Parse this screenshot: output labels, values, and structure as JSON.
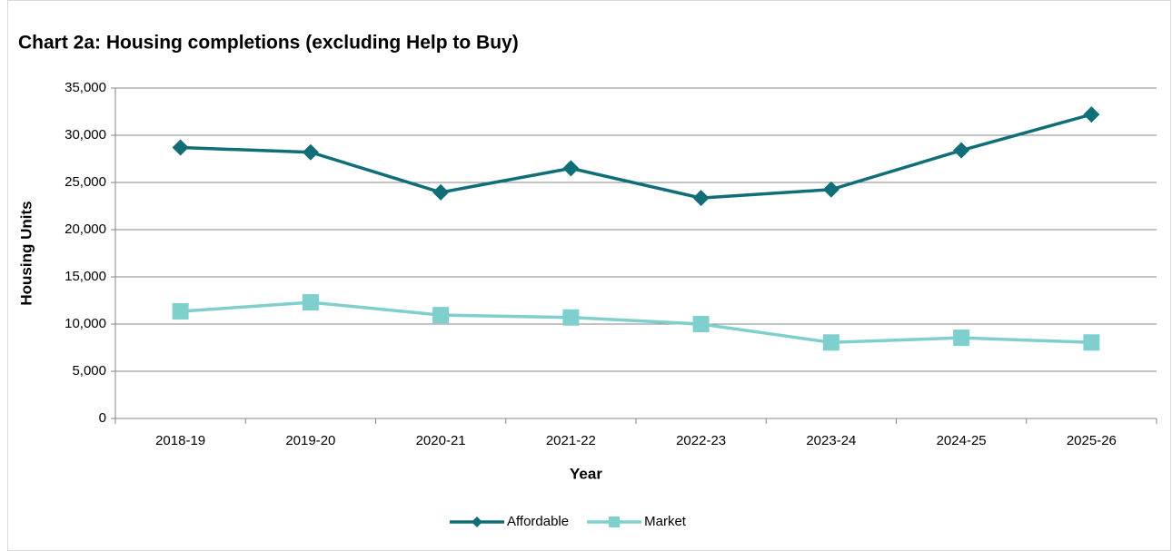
{
  "chart_data": {
    "type": "line",
    "title": "Chart 2a: Housing completions (excluding Help to Buy)",
    "x_label": "Year",
    "y_label": "Housing Units",
    "categories": [
      "2018-19",
      "2019-20",
      "2020-21",
      "2021-22",
      "2022-23",
      "2023-24",
      "2024-25",
      "2025-26"
    ],
    "series": [
      {
        "name": "Affordable",
        "color": "#0f6e78",
        "marker": "diamond",
        "values": [
          28700,
          28200,
          23950,
          26500,
          23350,
          24250,
          28400,
          32200
        ]
      },
      {
        "name": "Market",
        "color": "#7fcfcf",
        "marker": "square",
        "values": [
          11350,
          12300,
          10950,
          10700,
          10000,
          8050,
          8550,
          8050
        ]
      }
    ],
    "ylim": [
      0,
      35000
    ],
    "yticks": [
      0,
      {
        "value": 5000,
        "label": "5,000"
      },
      {
        "value": 10000,
        "label": "10,000"
      },
      {
        "value": 15000,
        "label": "15,000"
      },
      {
        "value": 20000,
        "label": "20,000"
      },
      {
        "value": 25000,
        "label": "25,000"
      },
      {
        "value": 30000,
        "label": "30,000"
      },
      {
        "value": 35000,
        "label": "35,000"
      }
    ],
    "grid": true,
    "legend": "bottom"
  }
}
